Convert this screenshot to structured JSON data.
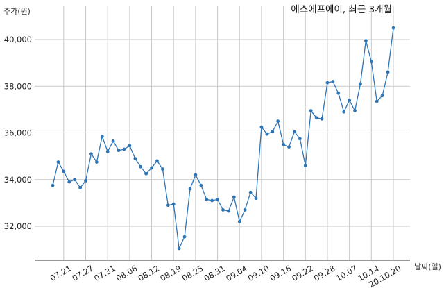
{
  "chart_data": {
    "type": "line",
    "title": "에스에프에이, 최근 3개월",
    "ylabel": "주가(원)",
    "xlabel": "날짜(일)",
    "ylim": [
      30600,
      40900
    ],
    "grid": true,
    "y_ticks": [
      32000,
      34000,
      36000,
      38000,
      40000
    ],
    "y_tick_labels": [
      "32,000",
      "34,000",
      "36,000",
      "38,000",
      "40,000"
    ],
    "x_tick_labels": [
      "07.21",
      "07.27",
      "07.31",
      "08.06",
      "08.12",
      "08.19",
      "08.25",
      "08.31",
      "09.04",
      "09.10",
      "09.16",
      "09.22",
      "09.28",
      "10.07",
      "10.14",
      "20.10.20"
    ],
    "x_tick_positions": [
      2,
      6,
      10,
      14,
      18,
      22,
      26,
      30,
      34,
      38,
      42,
      46,
      50,
      54,
      58,
      62
    ],
    "series": [
      {
        "color": "#2e75b6",
        "values": [
          33750,
          34750,
          34350,
          33900,
          34000,
          33650,
          33950,
          35100,
          34750,
          35850,
          35200,
          35650,
          35250,
          35300,
          35450,
          34900,
          34550,
          34250,
          34500,
          34800,
          34450,
          32900,
          32950,
          31050,
          31550,
          33600,
          34200,
          33750,
          33150,
          33100,
          33150,
          32700,
          32650,
          33250,
          32200,
          32700,
          33450,
          33200,
          36250,
          35950,
          36050,
          36500,
          35500,
          35400,
          36050,
          35750,
          34600,
          36950,
          36650,
          36600,
          38150,
          38200,
          37700,
          36900,
          37400,
          36950,
          38100,
          39950,
          39050,
          37350,
          37600,
          38600,
          40500
        ]
      }
    ]
  }
}
